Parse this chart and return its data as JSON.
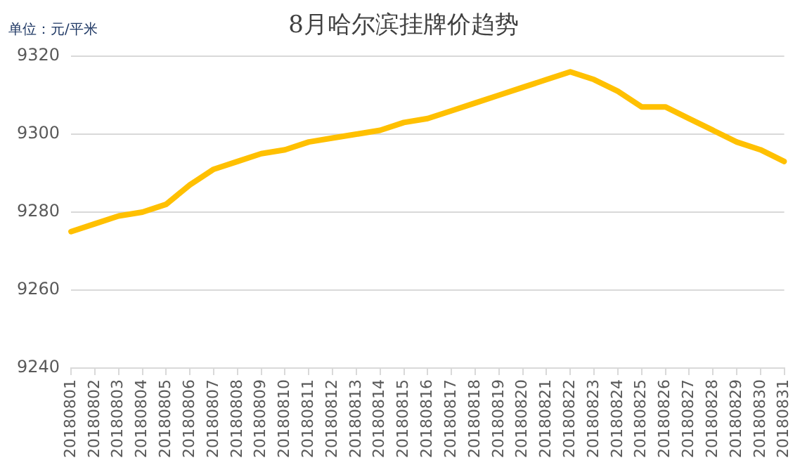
{
  "chart_data": {
    "type": "line",
    "title": "8月哈尔滨挂牌价趋势",
    "annotations": [
      "单位：元/平米"
    ],
    "categories": [
      "20180801",
      "20180802",
      "20180803",
      "20180804",
      "20180805",
      "20180806",
      "20180807",
      "20180808",
      "20180809",
      "20180810",
      "20180811",
      "20180812",
      "20180813",
      "20180814",
      "20180815",
      "20180816",
      "20180817",
      "20180818",
      "20180819",
      "20180820",
      "20180821",
      "20180822",
      "20180823",
      "20180824",
      "20180825",
      "20180826",
      "20180827",
      "20180828",
      "20180829",
      "20180830",
      "20180831"
    ],
    "series": [
      {
        "color": "#ffc000",
        "values": [
          9275,
          9277,
          9279,
          9280,
          9282,
          9287,
          9291,
          9293,
          9295,
          9296,
          9298,
          9299,
          9300,
          9301,
          9303,
          9304,
          9306,
          9308,
          9310,
          9312,
          9314,
          9316,
          9314,
          9311,
          9307,
          9307,
          9304,
          9301,
          9298,
          9296,
          9293
        ]
      }
    ],
    "ylim": [
      9240,
      9320
    ],
    "yticks": [
      9240,
      9260,
      9280,
      9300,
      9320
    ],
    "grid": "y",
    "legend": false,
    "marker": "none",
    "line_style": "solid"
  }
}
